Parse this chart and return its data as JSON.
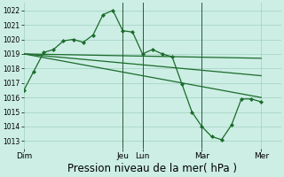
{
  "background_color": "#cceee4",
  "grid_color": "#aad4c8",
  "line_color": "#1a6b2a",
  "xlabel": "Pression niveau de la mer( hPa )",
  "xlabel_fontsize": 8.5,
  "ylim": [
    1012.5,
    1022.5
  ],
  "yticks": [
    1013,
    1014,
    1015,
    1016,
    1017,
    1018,
    1019,
    1020,
    1021,
    1022
  ],
  "day_labels": [
    "Dim",
    "Jeu",
    "Lun",
    "Mar",
    "Mer"
  ],
  "day_positions": [
    0,
    60,
    72,
    108,
    144
  ],
  "xlim": [
    0,
    156
  ],
  "main_x": [
    0,
    6,
    12,
    18,
    24,
    30,
    36,
    42,
    48,
    54,
    60,
    66,
    72,
    78,
    84,
    90,
    96,
    102,
    108,
    114,
    120,
    126,
    132,
    138,
    144
  ],
  "main_y": [
    1016.5,
    1017.8,
    1019.1,
    1019.3,
    1019.9,
    1020.0,
    1019.8,
    1020.3,
    1021.7,
    1022.0,
    1020.6,
    1020.5,
    1019.0,
    1019.3,
    1019.0,
    1018.8,
    1016.9,
    1015.0,
    1014.0,
    1013.3,
    1013.1,
    1014.1,
    1015.9,
    1015.9,
    1015.7
  ],
  "trend1_x": [
    0,
    144
  ],
  "trend1_y": [
    1019.0,
    1018.7
  ],
  "trend2_x": [
    0,
    144
  ],
  "trend2_y": [
    1019.0,
    1017.5
  ],
  "trend3_x": [
    0,
    144
  ],
  "trend3_y": [
    1019.0,
    1016.0
  ],
  "vline_positions": [
    60,
    72,
    108
  ],
  "vline_color": "#2a5a3a"
}
